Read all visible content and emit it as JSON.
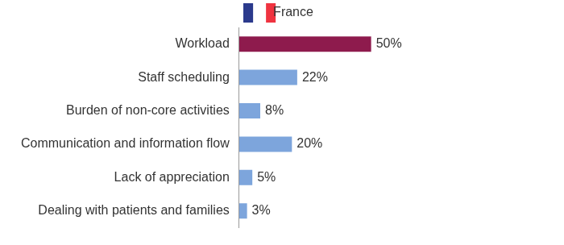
{
  "chart_data": {
    "type": "bar",
    "orientation": "horizontal",
    "categories": [
      "Workload",
      "Staff scheduling",
      "Burden of non-core activities",
      "Communication and information flow",
      "Lack of appreciation",
      "Dealing with patients and families"
    ],
    "series": [
      {
        "name": "France",
        "values": [
          50,
          22,
          8,
          20,
          5,
          3
        ],
        "value_labels": [
          "50%",
          "22%",
          "8%",
          "20%",
          "5%",
          "3%"
        ],
        "colors": [
          "#8e1b4d",
          "#7da5dc",
          "#7da5dc",
          "#7da5dc",
          "#7da5dc",
          "#7da5dc"
        ]
      }
    ],
    "xlim": [
      0,
      120
    ],
    "grid": false,
    "tick_labels": "y",
    "data_labels": true,
    "legend": "top"
  }
}
